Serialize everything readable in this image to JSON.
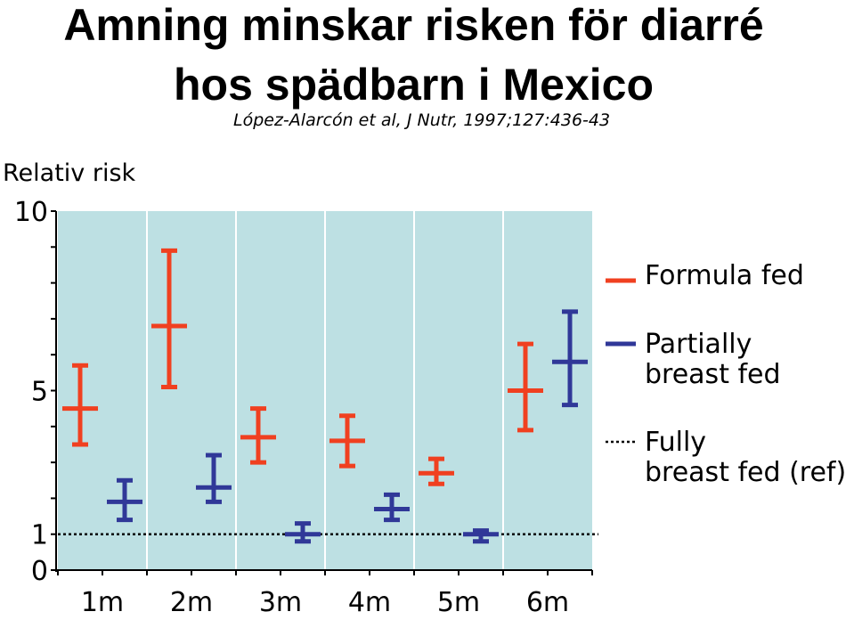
{
  "title_line1": "Amning minskar risken för diarré",
  "title_line2": "hos spädbarn i Mexico",
  "subtitle": "López-Alarcón et al, J Nutr, 1997;127:436-43",
  "chart_data": {
    "type": "errorbar",
    "title": "Amning minskar risken för diarré hos spädbarn i Mexico",
    "subtitle": "López-Alarcón et al, J Nutr, 1997;127:436-43",
    "ylabel": "Relativ risk",
    "xlabel": "",
    "ylim": [
      0,
      10
    ],
    "yticks": [
      0,
      1,
      5,
      10
    ],
    "ytick_labels": [
      "0",
      "1",
      "5",
      "10"
    ],
    "categories": [
      "1m",
      "2m",
      "3m",
      "4m",
      "5m",
      "6m"
    ],
    "reference": {
      "name": "Fully breast fed (ref)",
      "value": 1,
      "style": "dotted",
      "color": "#000000"
    },
    "series": [
      {
        "name": "Formula fed",
        "color": "#f04020",
        "values": [
          4.5,
          6.8,
          3.7,
          3.6,
          2.7,
          5.0
        ],
        "lower": [
          3.5,
          5.1,
          3.0,
          2.9,
          2.4,
          3.9
        ],
        "upper": [
          5.7,
          8.9,
          4.5,
          4.3,
          3.1,
          6.3
        ]
      },
      {
        "name": "Partially breast fed",
        "color": "#303898",
        "values": [
          1.9,
          2.3,
          1.0,
          1.7,
          1.0,
          5.8
        ],
        "lower": [
          1.4,
          1.9,
          0.8,
          1.4,
          0.8,
          4.6
        ],
        "upper": [
          2.5,
          3.2,
          1.3,
          2.1,
          1.1,
          7.2
        ]
      }
    ],
    "background_color": "#bde0e3",
    "legend_position": "right"
  },
  "legend": {
    "formula_label": "Formula fed",
    "partial_line1": "Partially",
    "partial_line2": "breast fed",
    "fully_line1": "Fully",
    "fully_line2": "breast fed (ref)"
  }
}
